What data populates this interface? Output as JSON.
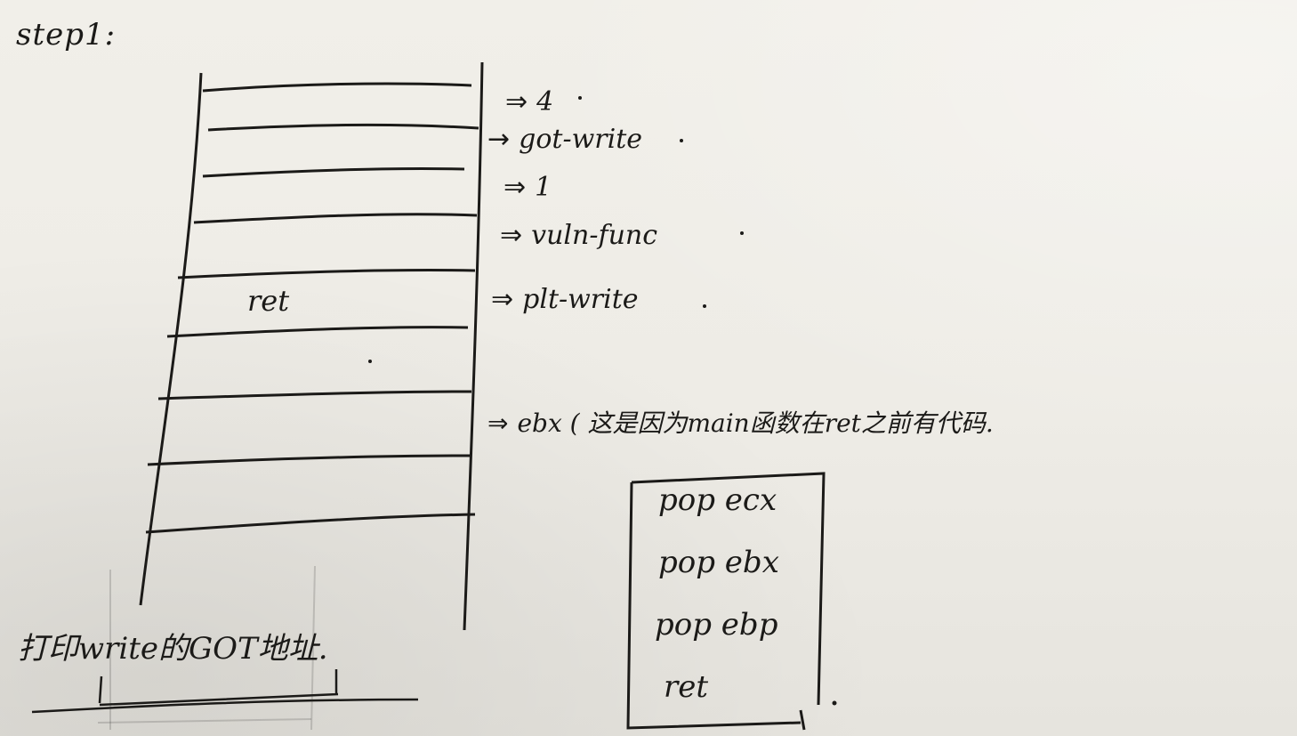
{
  "heading": "step1:",
  "stack_rows": [
    {
      "arrow": "⇒",
      "label": "4"
    },
    {
      "arrow": "→",
      "label": "got-write"
    },
    {
      "arrow": "⇒",
      "label": "1"
    },
    {
      "arrow": "⇒",
      "label": "vuln-func"
    },
    {
      "arrow": "⇒",
      "label": "plt-write"
    },
    {
      "arrow": "⇒",
      "label": "ebx ( 这是因为main函数在ret之前有代码."
    }
  ],
  "cell_text": "ret",
  "gadget_box": [
    "pop ecx",
    "pop ebx",
    "pop ebp",
    "ret"
  ],
  "bottom_note": "打印write的GOT地址."
}
